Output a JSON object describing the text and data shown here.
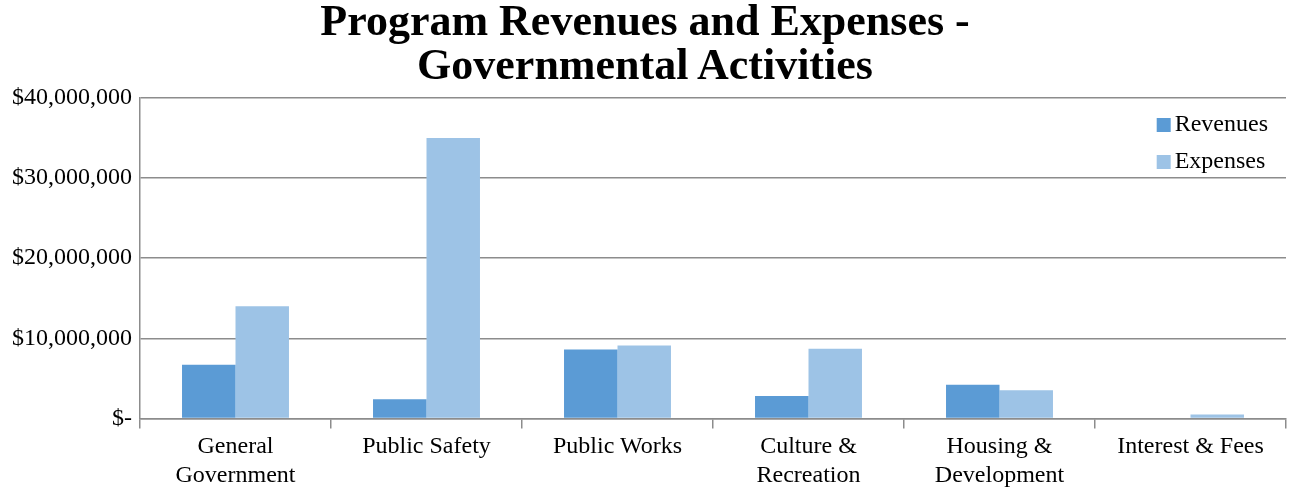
{
  "chart_data": {
    "type": "bar",
    "title": "Program Revenues and Expenses - Governmental Activities",
    "categories": [
      "General Government",
      "Public Safety",
      "Public Works",
      "Culture & Recreation",
      "Housing & Development",
      "Interest & Fees"
    ],
    "series": [
      {
        "name": "Revenues",
        "color": "#5b9bd5",
        "values": [
          6700000,
          2400000,
          8600000,
          2800000,
          4200000,
          0
        ]
      },
      {
        "name": "Expenses",
        "color": "#9dc3e6",
        "values": [
          14000000,
          35000000,
          9100000,
          8700000,
          3500000,
          500000
        ]
      }
    ],
    "ylim": [
      0,
      40000000
    ],
    "yticks": [
      {
        "value": 0,
        "label": "$-"
      },
      {
        "value": 10000000,
        "label": "$10,000,000"
      },
      {
        "value": 20000000,
        "label": "$20,000,000"
      },
      {
        "value": 30000000,
        "label": "$30,000,000"
      },
      {
        "value": 40000000,
        "label": "$40,000,000"
      }
    ],
    "grid": "y",
    "legend": "top right"
  }
}
